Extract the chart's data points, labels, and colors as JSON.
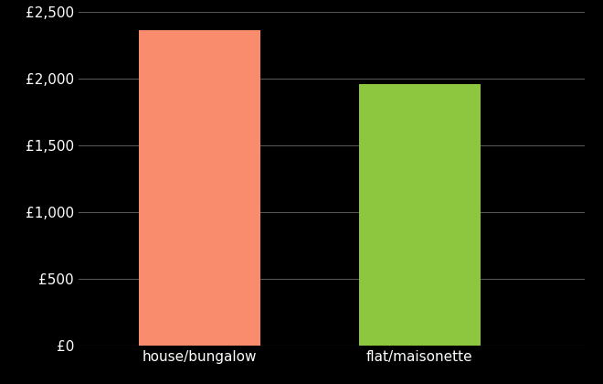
{
  "categories": [
    "house/bungalow",
    "flat/maisonette"
  ],
  "values": [
    2360,
    1960
  ],
  "bar_colors": [
    "#FA8C6E",
    "#8DC63F"
  ],
  "background_color": "#000000",
  "text_color": "#ffffff",
  "grid_color": "#555555",
  "ylim": [
    0,
    2500
  ],
  "yticks": [
    0,
    500,
    1000,
    1500,
    2000,
    2500
  ],
  "ytick_labels": [
    "£0",
    "£500",
    "£1,000",
    "£1,500",
    "£2,000",
    "£2,500"
  ],
  "bar_width": 0.55,
  "x_positions": [
    1,
    2
  ],
  "xlim": [
    0.45,
    2.75
  ],
  "tick_fontsize": 11,
  "label_fontsize": 11
}
